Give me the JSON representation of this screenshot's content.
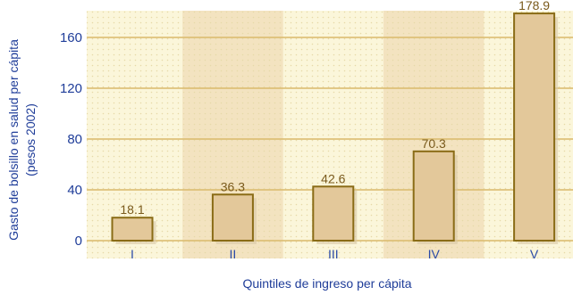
{
  "chart_data": {
    "type": "bar",
    "categories": [
      "I",
      "II",
      "III",
      "IV",
      "V"
    ],
    "values": [
      18.1,
      36.3,
      42.6,
      70.3,
      178.9
    ],
    "value_labels": [
      "18.1",
      "36.3",
      "42.6",
      "70.3",
      "178.9"
    ],
    "ylabel_line1": "Gasto de bolsillo en salud per cápita",
    "ylabel_line2": "(pesos 2002)",
    "xlabel": "Quintiles de ingreso per cápita",
    "ylim": [
      0,
      180
    ],
    "yticks": [
      0,
      40,
      80,
      120,
      160
    ],
    "grid": true,
    "colors": {
      "plot_bg": "#fbf6da",
      "stripe_bg": "#f3e3c0",
      "bar_fill": "#e3c89a",
      "bar_stroke": "#8a6c16",
      "grid": "#d9b96a",
      "axis_text": "#1f3d99"
    }
  }
}
